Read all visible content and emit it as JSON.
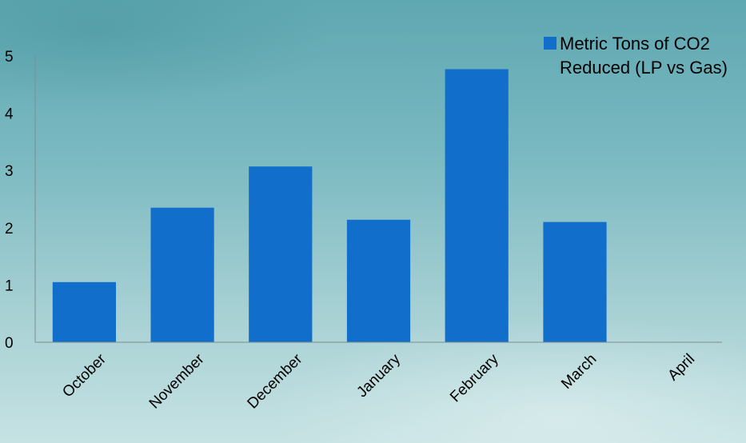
{
  "chart_data": {
    "type": "bar",
    "categories": [
      "October",
      "November",
      "December",
      "January",
      "February",
      "March",
      "April"
    ],
    "series": [
      {
        "name": "Metric Tons of CO2 Reduced (LP vs Gas)",
        "values": [
          1.05,
          2.35,
          3.07,
          2.14,
          4.77,
          2.1,
          0
        ],
        "color": "#116ecb"
      }
    ],
    "y_ticks": [
      "0",
      "1",
      "2",
      "3",
      "4",
      "5"
    ],
    "ylim": [
      0,
      5
    ],
    "grid": false,
    "legend_position": "top-right",
    "axis_color": "#7f8c8d"
  }
}
